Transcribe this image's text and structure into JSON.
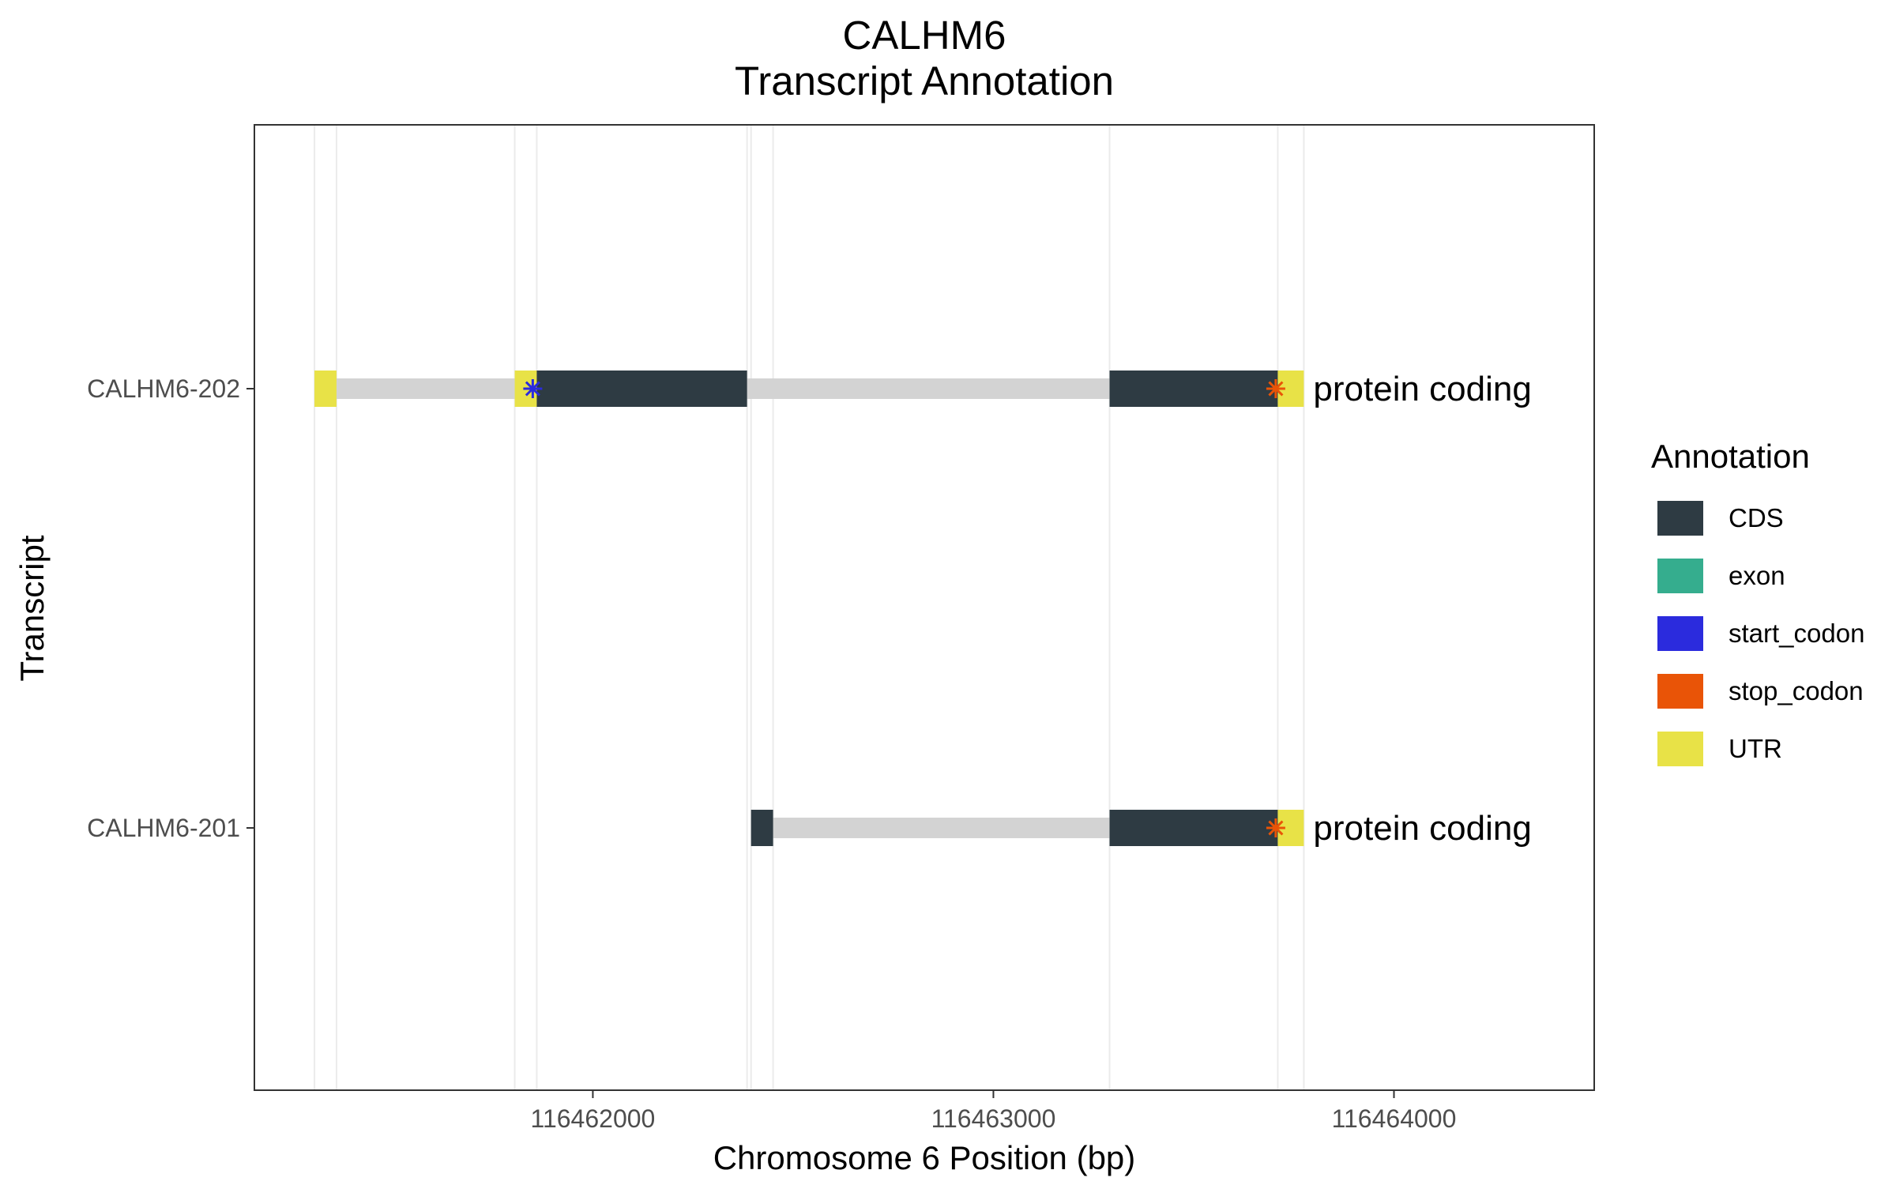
{
  "chart_data": {
    "type": "gene-track",
    "title": [
      "CALHM6",
      "Transcript Annotation"
    ],
    "xlabel": "Chromosome 6 Position (bp)",
    "ylabel": "Transcript",
    "xlim": [
      116461155,
      116464500
    ],
    "x_ticks": [
      116462000,
      116463000,
      116464000
    ],
    "x_tick_labels": [
      "116462000",
      "116463000",
      "116464000"
    ],
    "grid": true,
    "legend": {
      "title": "Annotation",
      "placement": "right",
      "items": [
        {
          "label": "CDS",
          "color": "#2e3b43"
        },
        {
          "label": "exon",
          "color": "#35ad8e"
        },
        {
          "label": "start_codon",
          "color": "#2b2bdd"
        },
        {
          "label": "stop_codon",
          "color": "#e95407"
        },
        {
          "label": "UTR",
          "color": "#e8e247"
        }
      ]
    },
    "colors": {
      "intron": "#d3d3d3",
      "CDS": "#2e3b43",
      "UTR": "#e8e247",
      "start_codon": "#2b2bdd",
      "stop_codon": "#e95407",
      "grid": "#ebebeb"
    },
    "transcripts": [
      {
        "name": "CALHM6-202",
        "biotype": "protein coding",
        "start": 116461305,
        "end": 116463775,
        "features": [
          {
            "type": "UTR",
            "start": 116461305,
            "end": 116461360
          },
          {
            "type": "UTR",
            "start": 116461805,
            "end": 116461860
          },
          {
            "type": "CDS",
            "start": 116461860,
            "end": 116462385
          },
          {
            "type": "CDS",
            "start": 116463290,
            "end": 116463710
          },
          {
            "type": "UTR",
            "start": 116463710,
            "end": 116463775
          }
        ],
        "start_codon": 116461850,
        "stop_codon": 116463705
      },
      {
        "name": "CALHM6-201",
        "biotype": "protein coding",
        "start": 116462395,
        "end": 116463775,
        "features": [
          {
            "type": "CDS",
            "start": 116462395,
            "end": 116462450
          },
          {
            "type": "CDS",
            "start": 116463290,
            "end": 116463710
          },
          {
            "type": "UTR",
            "start": 116463710,
            "end": 116463775
          }
        ],
        "stop_codon": 116463705
      }
    ]
  }
}
